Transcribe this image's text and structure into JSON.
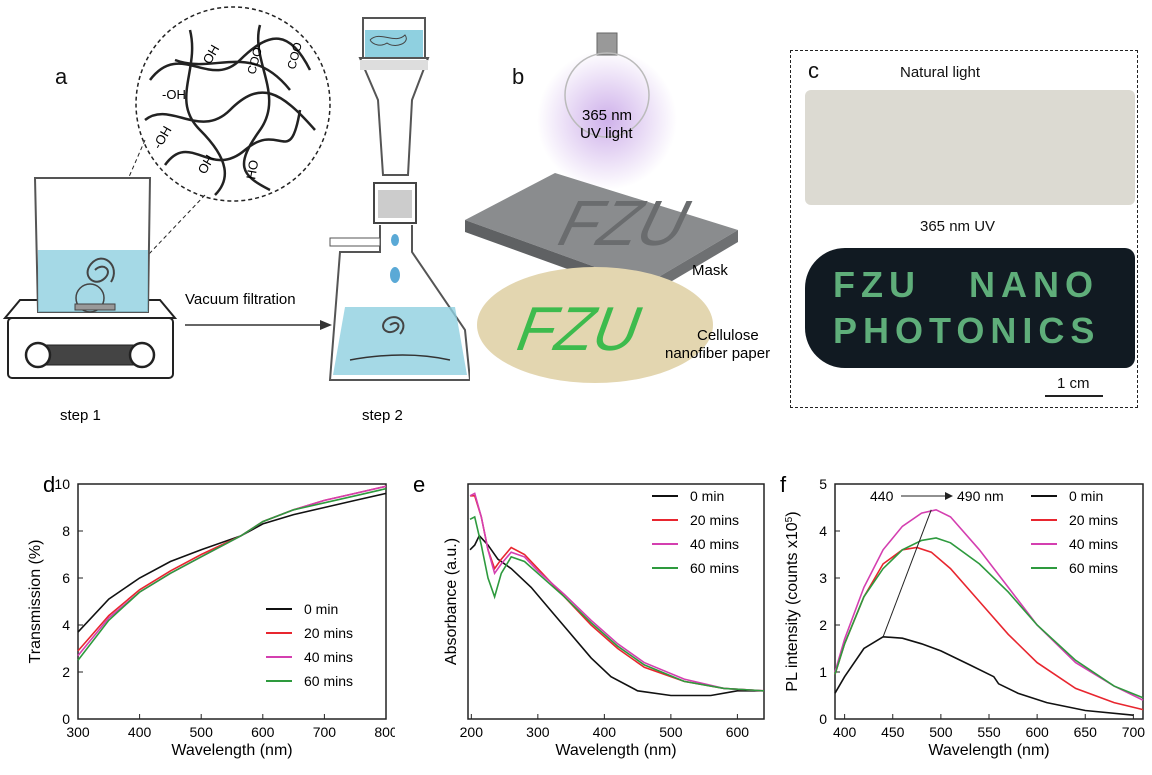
{
  "panels": {
    "a": {
      "letter": "a",
      "step1": "step 1",
      "step2": "step 2",
      "arrow_text": "Vacuum filtration",
      "groups": [
        "-OH",
        "OH",
        "COO-",
        "COO",
        "-OH",
        "OH",
        "HO"
      ]
    },
    "b": {
      "letter": "b",
      "uv_line1": "365 nm",
      "uv_line2": "UV light",
      "mask_text": "FZU",
      "mask_label": "Mask",
      "paper_text": "FZU",
      "paper_label1": "Cellulose",
      "paper_label2": "nanofiber paper"
    },
    "c": {
      "letter": "c",
      "top_label": "Natural light",
      "bottom_label": "365 nm UV",
      "uv_line1": "FZU   NANO",
      "uv_line2": "PHOTONICS",
      "scale": "1 cm"
    }
  },
  "colors": {
    "s0": "#111111",
    "s20": "#e8262f",
    "s40": "#d43fb0",
    "s60": "#2e9a3e",
    "water": "#8fd0e0",
    "uvglow": "#c9a8e8",
    "paper": "#e3d6b0",
    "fzu_green": "#3dbb4d"
  },
  "chart_data": [
    {
      "panel": "d",
      "type": "line",
      "xlabel": "Wavelength (nm)",
      "ylabel": "Transmission (%)",
      "xlim": [
        300,
        800
      ],
      "ylim": [
        0,
        10
      ],
      "xticks": [
        300,
        400,
        500,
        600,
        700,
        800
      ],
      "yticks": [
        0,
        2,
        4,
        6,
        8,
        10
      ],
      "legend": "bottom-right",
      "series": [
        {
          "name": "0 min",
          "color": "#111111",
          "x": [
            300,
            350,
            400,
            450,
            500,
            565,
            600,
            650,
            700,
            750,
            800
          ],
          "y": [
            3.7,
            5.1,
            6.0,
            6.7,
            7.2,
            7.8,
            8.3,
            8.7,
            9.0,
            9.3,
            9.6
          ]
        },
        {
          "name": "20 mins",
          "color": "#e8262f",
          "x": [
            300,
            350,
            400,
            450,
            500,
            565,
            600,
            650,
            700,
            750,
            800
          ],
          "y": [
            2.9,
            4.4,
            5.5,
            6.3,
            7.0,
            7.8,
            8.4,
            8.9,
            9.3,
            9.6,
            9.9
          ]
        },
        {
          "name": "40 mins",
          "color": "#d43fb0",
          "x": [
            300,
            350,
            400,
            450,
            500,
            565,
            600,
            650,
            700,
            750,
            800
          ],
          "y": [
            2.7,
            4.3,
            5.4,
            6.2,
            6.9,
            7.8,
            8.4,
            8.9,
            9.3,
            9.6,
            9.9
          ]
        },
        {
          "name": "60 mins",
          "color": "#2e9a3e",
          "x": [
            300,
            350,
            400,
            450,
            500,
            565,
            600,
            650,
            700,
            750,
            800
          ],
          "y": [
            2.5,
            4.2,
            5.4,
            6.2,
            6.9,
            7.8,
            8.4,
            8.9,
            9.2,
            9.5,
            9.8
          ]
        }
      ]
    },
    {
      "panel": "e",
      "type": "line",
      "xlabel": "Wavelength (nm)",
      "ylabel": "Absorbance (a.u.)",
      "xlim": [
        195,
        640
      ],
      "ylim": [
        0,
        1
      ],
      "xticks": [
        200,
        300,
        400,
        500,
        600
      ],
      "yticks": [],
      "legend": "top-right",
      "series": [
        {
          "name": "0 min",
          "color": "#111111",
          "x": [
            198,
            205,
            212,
            225,
            240,
            260,
            290,
            320,
            350,
            380,
            410,
            450,
            500,
            560,
            600,
            640
          ],
          "y": [
            0.72,
            0.74,
            0.78,
            0.74,
            0.68,
            0.64,
            0.56,
            0.46,
            0.36,
            0.26,
            0.18,
            0.12,
            0.1,
            0.1,
            0.12,
            0.12
          ]
        },
        {
          "name": "20 mins",
          "color": "#e8262f",
          "x": [
            198,
            205,
            215,
            225,
            235,
            245,
            260,
            280,
            300,
            340,
            380,
            420,
            460,
            520,
            580,
            640
          ],
          "y": [
            0.95,
            0.95,
            0.86,
            0.72,
            0.64,
            0.68,
            0.73,
            0.7,
            0.64,
            0.52,
            0.4,
            0.3,
            0.22,
            0.16,
            0.13,
            0.12
          ]
        },
        {
          "name": "40 mins",
          "color": "#d43fb0",
          "x": [
            198,
            205,
            215,
            225,
            235,
            245,
            260,
            280,
            300,
            340,
            380,
            420,
            460,
            520,
            580,
            640
          ],
          "y": [
            0.95,
            0.96,
            0.86,
            0.72,
            0.62,
            0.66,
            0.71,
            0.69,
            0.63,
            0.53,
            0.42,
            0.32,
            0.24,
            0.17,
            0.13,
            0.12
          ]
        },
        {
          "name": "60 mins",
          "color": "#2e9a3e",
          "x": [
            198,
            205,
            215,
            225,
            235,
            245,
            260,
            280,
            300,
            340,
            380,
            420,
            460,
            520,
            580,
            640
          ],
          "y": [
            0.85,
            0.86,
            0.74,
            0.6,
            0.52,
            0.62,
            0.69,
            0.67,
            0.62,
            0.52,
            0.41,
            0.31,
            0.23,
            0.16,
            0.13,
            0.12
          ]
        }
      ]
    },
    {
      "panel": "f",
      "type": "line",
      "xlabel": "Wavelength (nm)",
      "ylabel": "PL intensity (counts x10",
      "ylabel_sup": "5",
      "ylabel_end": ")",
      "xlim": [
        390,
        710
      ],
      "ylim": [
        0,
        5
      ],
      "xticks": [
        400,
        450,
        500,
        550,
        600,
        650,
        700
      ],
      "yticks": [
        0,
        1,
        2,
        3,
        4,
        5
      ],
      "legend": "top-right",
      "annotation": {
        "start": "440",
        "end": "490 nm"
      },
      "series": [
        {
          "name": "0 min",
          "color": "#111111",
          "x": [
            390,
            400,
            420,
            440,
            460,
            480,
            500,
            530,
            555,
            560,
            580,
            610,
            650,
            700
          ],
          "y": [
            0.55,
            0.9,
            1.5,
            1.75,
            1.72,
            1.6,
            1.45,
            1.15,
            0.9,
            0.75,
            0.55,
            0.35,
            0.18,
            0.08
          ]
        },
        {
          "name": "20 mins",
          "color": "#e8262f",
          "x": [
            390,
            400,
            420,
            440,
            460,
            475,
            490,
            510,
            540,
            570,
            600,
            640,
            680,
            710
          ],
          "y": [
            0.95,
            1.6,
            2.6,
            3.3,
            3.6,
            3.65,
            3.55,
            3.2,
            2.5,
            1.8,
            1.2,
            0.65,
            0.35,
            0.2
          ]
        },
        {
          "name": "40 mins",
          "color": "#d43fb0",
          "x": [
            390,
            400,
            420,
            440,
            460,
            480,
            495,
            510,
            540,
            570,
            600,
            640,
            680,
            710
          ],
          "y": [
            1.0,
            1.7,
            2.8,
            3.6,
            4.1,
            4.38,
            4.45,
            4.3,
            3.6,
            2.8,
            2.0,
            1.2,
            0.7,
            0.4
          ]
        },
        {
          "name": "60 mins",
          "color": "#2e9a3e",
          "x": [
            390,
            400,
            420,
            440,
            460,
            480,
            495,
            510,
            540,
            570,
            600,
            640,
            680,
            710
          ],
          "y": [
            0.95,
            1.6,
            2.6,
            3.2,
            3.6,
            3.8,
            3.85,
            3.75,
            3.3,
            2.7,
            2.0,
            1.25,
            0.7,
            0.45
          ]
        }
      ]
    }
  ]
}
